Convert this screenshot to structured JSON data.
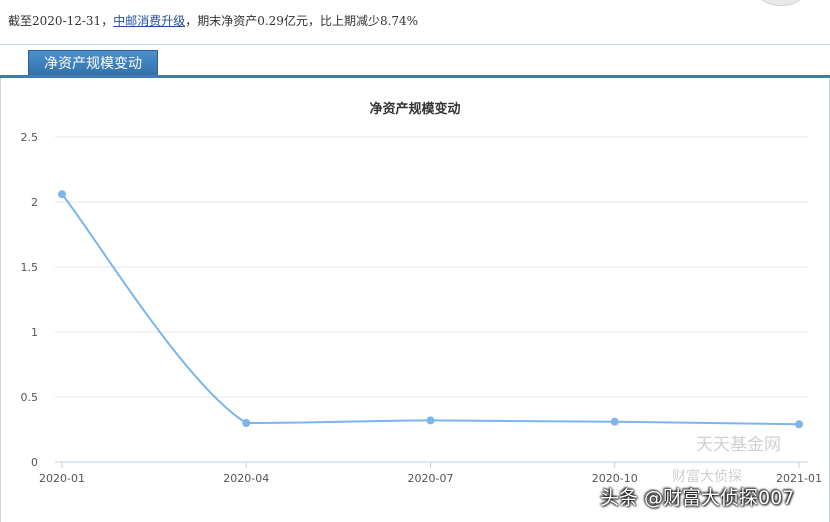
{
  "summary": {
    "prefix": "截至2020-12-31，",
    "fund_name": "中邮消费升级",
    "suffix": "，期末净资产0.29亿元，比上期减少8.74%"
  },
  "tab": {
    "label": "净资产规模变动"
  },
  "watermarks": {
    "site": "天天基金网",
    "account": "财富大侦探",
    "credit": "头条 @财富大侦探007"
  },
  "colors": {
    "series": "#7cb5ec",
    "tab": "#3a7ab6",
    "grid": "#e6e6e6"
  },
  "chart_data": {
    "type": "line",
    "title": "净资产规模变动",
    "categories": [
      "2020-01",
      "2020-04",
      "2020-07",
      "2020-10",
      "2021-01"
    ],
    "values": [
      2.06,
      0.3,
      0.32,
      0.31,
      0.29
    ],
    "yticks": [
      "0",
      "0.5",
      "1",
      "1.5",
      "2",
      "2.5"
    ],
    "ylim": [
      0,
      2.5
    ],
    "grid": true,
    "smooth": true
  }
}
